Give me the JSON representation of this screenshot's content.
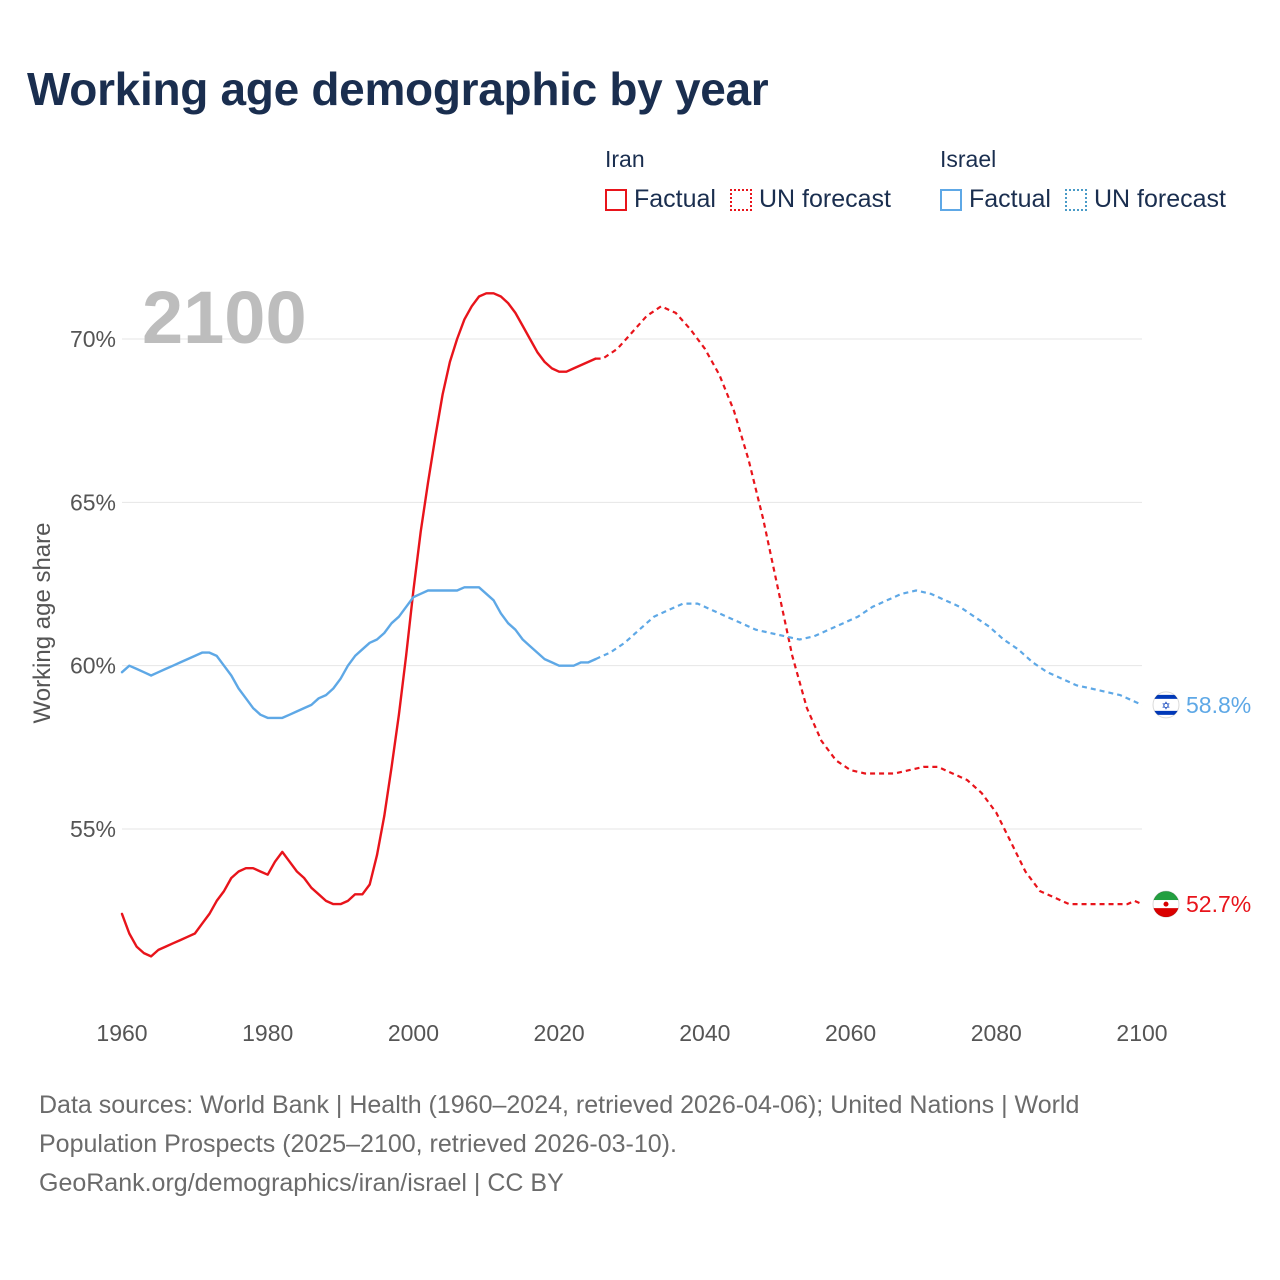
{
  "title": "Working age demographic by year",
  "legend": {
    "iran": {
      "name": "Iran",
      "factual": "Factual",
      "forecast": "UN forecast",
      "color": "#e8141b"
    },
    "israel": {
      "name": "Israel",
      "factual": "Factual",
      "forecast": "UN forecast",
      "color": "#5ea8e6"
    }
  },
  "year_overlay": "2100",
  "sources": {
    "line1": "Data sources: World Bank | Health (1960–2024, retrieved 2026-04-06); United Nations | World",
    "line2": "Population Prospects (2025–2100, retrieved 2026-03-10).",
    "line3": "GeoRank.org/demographics/iran/israel | CC BY"
  },
  "icons": {
    "israel": "israel-flag-icon",
    "iran": "iran-flag-icon"
  },
  "chart_data": {
    "type": "line",
    "title": "Working age demographic by year",
    "xlabel": "",
    "ylabel": "Working age share",
    "xlim": [
      1960,
      2100
    ],
    "ylim": [
      50,
      72.5
    ],
    "x_ticks": [
      1960,
      1980,
      2000,
      2020,
      2040,
      2060,
      2080,
      2100
    ],
    "x_tick_labels": [
      "1960",
      "1980",
      "2000",
      "2020",
      "2040",
      "2060",
      "2080",
      "2100"
    ],
    "y_ticks": [
      55,
      60,
      65,
      70
    ],
    "y_tick_labels": [
      "55%",
      "60%",
      "65%",
      "70%"
    ],
    "grid": true,
    "series": [
      {
        "name": "Iran",
        "color": "#e8141b",
        "end_label": "52.7%",
        "factual": {
          "x": [
            1960,
            1961,
            1962,
            1963,
            1964,
            1965,
            1966,
            1967,
            1968,
            1969,
            1970,
            1971,
            1972,
            1973,
            1974,
            1975,
            1976,
            1977,
            1978,
            1979,
            1980,
            1981,
            1982,
            1983,
            1984,
            1985,
            1986,
            1987,
            1988,
            1989,
            1990,
            1991,
            1992,
            1993,
            1994,
            1995,
            1996,
            1997,
            1998,
            1999,
            2000,
            2001,
            2002,
            2003,
            2004,
            2005,
            2006,
            2007,
            2008,
            2009,
            2010,
            2011,
            2012,
            2013,
            2014,
            2015,
            2016,
            2017,
            2018,
            2019,
            2020,
            2021,
            2022,
            2023,
            2024,
            2025
          ],
          "y": [
            52.4,
            51.8,
            51.4,
            51.2,
            51.1,
            51.3,
            51.4,
            51.5,
            51.6,
            51.7,
            51.8,
            52.1,
            52.4,
            52.8,
            53.1,
            53.5,
            53.7,
            53.8,
            53.8,
            53.7,
            53.6,
            54.0,
            54.3,
            54.0,
            53.7,
            53.5,
            53.2,
            53.0,
            52.8,
            52.7,
            52.7,
            52.8,
            53.0,
            53.0,
            53.3,
            54.2,
            55.4,
            56.9,
            58.5,
            60.3,
            62.3,
            64.1,
            65.6,
            67.0,
            68.3,
            69.3,
            70.0,
            70.6,
            71.0,
            71.3,
            71.4,
            71.4,
            71.3,
            71.1,
            70.8,
            70.4,
            70.0,
            69.6,
            69.3,
            69.1,
            69.0,
            69.0,
            69.1,
            69.2,
            69.3,
            69.4
          ]
        },
        "forecast": {
          "x": [
            2025,
            2026,
            2028,
            2030,
            2032,
            2034,
            2036,
            2038,
            2040,
            2042,
            2044,
            2046,
            2048,
            2050,
            2052,
            2054,
            2056,
            2058,
            2060,
            2062,
            2064,
            2066,
            2068,
            2070,
            2072,
            2074,
            2076,
            2078,
            2080,
            2082,
            2084,
            2086,
            2088,
            2090,
            2092,
            2094,
            2096,
            2098,
            2099,
            2100
          ],
          "y": [
            69.4,
            69.4,
            69.7,
            70.2,
            70.7,
            71.0,
            70.8,
            70.3,
            69.7,
            68.9,
            67.8,
            66.3,
            64.5,
            62.4,
            60.3,
            58.7,
            57.7,
            57.1,
            56.8,
            56.7,
            56.7,
            56.7,
            56.8,
            56.9,
            56.9,
            56.7,
            56.5,
            56.1,
            55.5,
            54.6,
            53.7,
            53.1,
            52.9,
            52.7,
            52.7,
            52.7,
            52.7,
            52.7,
            52.8,
            52.7
          ]
        }
      },
      {
        "name": "Israel",
        "color": "#5ea8e6",
        "end_label": "58.8%",
        "factual": {
          "x": [
            1960,
            1961,
            1962,
            1963,
            1964,
            1965,
            1966,
            1967,
            1968,
            1969,
            1970,
            1971,
            1972,
            1973,
            1974,
            1975,
            1976,
            1977,
            1978,
            1979,
            1980,
            1981,
            1982,
            1983,
            1984,
            1985,
            1986,
            1987,
            1988,
            1989,
            1990,
            1991,
            1992,
            1993,
            1994,
            1995,
            1996,
            1997,
            1998,
            1999,
            2000,
            2001,
            2002,
            2003,
            2004,
            2005,
            2006,
            2007,
            2008,
            2009,
            2010,
            2011,
            2012,
            2013,
            2014,
            2015,
            2016,
            2017,
            2018,
            2019,
            2020,
            2021,
            2022,
            2023,
            2024,
            2025
          ],
          "y": [
            59.8,
            60.0,
            59.9,
            59.8,
            59.7,
            59.8,
            59.9,
            60.0,
            60.1,
            60.2,
            60.3,
            60.4,
            60.4,
            60.3,
            60.0,
            59.7,
            59.3,
            59.0,
            58.7,
            58.5,
            58.4,
            58.4,
            58.4,
            58.5,
            58.6,
            58.7,
            58.8,
            59.0,
            59.1,
            59.3,
            59.6,
            60.0,
            60.3,
            60.5,
            60.7,
            60.8,
            61.0,
            61.3,
            61.5,
            61.8,
            62.1,
            62.2,
            62.3,
            62.3,
            62.3,
            62.3,
            62.3,
            62.4,
            62.4,
            62.4,
            62.2,
            62.0,
            61.6,
            61.3,
            61.1,
            60.8,
            60.6,
            60.4,
            60.2,
            60.1,
            60.0,
            60.0,
            60.0,
            60.1,
            60.1,
            60.2
          ]
        },
        "forecast": {
          "x": [
            2025,
            2027,
            2029,
            2031,
            2033,
            2035,
            2037,
            2039,
            2041,
            2043,
            2045,
            2047,
            2049,
            2051,
            2053,
            2055,
            2057,
            2059,
            2061,
            2063,
            2065,
            2067,
            2069,
            2071,
            2073,
            2075,
            2077,
            2079,
            2081,
            2083,
            2085,
            2087,
            2089,
            2091,
            2093,
            2095,
            2097,
            2099,
            2100
          ],
          "y": [
            60.2,
            60.4,
            60.7,
            61.1,
            61.5,
            61.7,
            61.9,
            61.9,
            61.7,
            61.5,
            61.3,
            61.1,
            61.0,
            60.9,
            60.8,
            60.9,
            61.1,
            61.3,
            61.5,
            61.8,
            62.0,
            62.2,
            62.3,
            62.2,
            62.0,
            61.8,
            61.5,
            61.2,
            60.8,
            60.5,
            60.1,
            59.8,
            59.6,
            59.4,
            59.3,
            59.2,
            59.1,
            58.9,
            58.8
          ]
        }
      }
    ]
  }
}
